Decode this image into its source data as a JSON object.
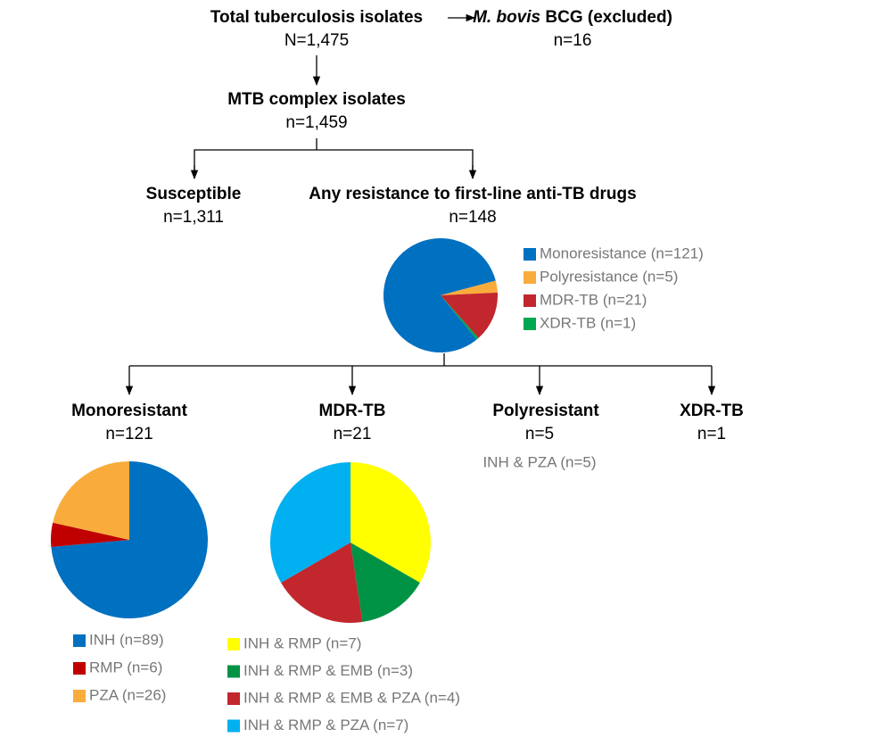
{
  "nodes": {
    "total": {
      "title": "Total tuberculosis isolates",
      "count": "N=1,475"
    },
    "excluded": {
      "title_italic": "M. bovis",
      "title_rest": " BCG (excluded)",
      "count": "n=16"
    },
    "mtb": {
      "title": "MTB complex isolates",
      "count": "n=1,459"
    },
    "susceptible": {
      "title": "Susceptible",
      "count": "n=1,311"
    },
    "resistant": {
      "title": "Any resistance to first-line anti-TB drugs",
      "count": "n=148"
    },
    "mono": {
      "title": "Monoresistant",
      "count": "n=121"
    },
    "mdr": {
      "title": "MDR-TB",
      "count": "n=21"
    },
    "poly": {
      "title": "Polyresistant",
      "count": "n=5",
      "note": "INH & PZA (n=5)"
    },
    "xdr": {
      "title": "XDR-TB",
      "count": "n=1"
    }
  },
  "pies": [
    {
      "slices": [
        {
          "label": "Monoresistance (n=121)",
          "value": 121,
          "color": "#0070c0"
        },
        {
          "label": "Polyresistance (n=5)",
          "value": 5,
          "color": "#f9ac3b"
        },
        {
          "label": "MDR-TB (n=21)",
          "value": 21,
          "color": "#c1272d"
        },
        {
          "label": "XDR-TB (n=1)",
          "value": 1,
          "color": "#00a650"
        }
      ]
    },
    {
      "slices": [
        {
          "label": "INH (n=89)",
          "value": 89,
          "color": "#0070c0"
        },
        {
          "label": "RMP (n=6)",
          "value": 6,
          "color": "#c00000"
        },
        {
          "label": "PZA (n=26)",
          "value": 26,
          "color": "#f9ac3b"
        }
      ]
    },
    {
      "slices": [
        {
          "label": "INH & RMP (n=7)",
          "value": 7,
          "color": "#ffff00"
        },
        {
          "label": "INH & RMP & EMB (n=3)",
          "value": 3,
          "color": "#009245"
        },
        {
          "label": "INH & RMP & EMB & PZA (n=4)",
          "value": 4,
          "color": "#c1272d"
        },
        {
          "label": "INH & RMP & PZA (n=7)",
          "value": 7,
          "color": "#00b0f0"
        }
      ]
    }
  ]
}
